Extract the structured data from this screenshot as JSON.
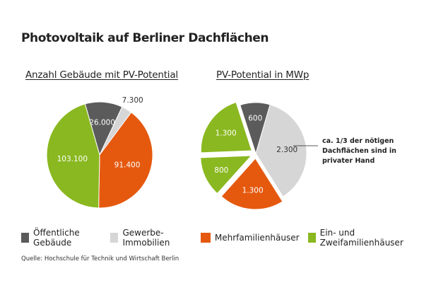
{
  "title": "Photovoltaik auf Berliner Dachflächen",
  "colors": {
    "oeffentlich": "#5b5b5b",
    "gewerbe": "#d6d6d6",
    "mehrfamilien": "#e5590f",
    "einzwei": "#8ab820"
  },
  "legend": [
    {
      "label": "Öffentliche Gebäude",
      "color": "#5b5b5b"
    },
    {
      "label": "Gewerbe-Immobilien",
      "color": "#d6d6d6"
    },
    {
      "label": "Mehrfamilienhäuser",
      "color": "#e5590f"
    },
    {
      "label": "Ein- und Zweifamilienhäuser",
      "color": "#8ab820"
    }
  ],
  "source": "Quelle: Hochschule für Technik und Wirtschaft Berlin",
  "chart_data": [
    {
      "type": "pie",
      "title": "Anzahl Gebäude mit PV-Potential",
      "slices": [
        {
          "category": "Öffentliche Gebäude",
          "value": 26000,
          "label": "26.000"
        },
        {
          "category": "Gewerbe-Immobilien",
          "value": 7300,
          "label": "7.300"
        },
        {
          "category": "Mehrfamilienhäuser",
          "value": 91400,
          "label": "91.400"
        },
        {
          "category": "Ein- und Zweifamilienhäuser",
          "value": 103100,
          "label": "103.100"
        }
      ]
    },
    {
      "type": "pie",
      "title": "PV-Potential in MWp",
      "slices": [
        {
          "category": "Öffentliche Gebäude",
          "value": 600,
          "label": "600"
        },
        {
          "category": "Gewerbe-Immobilien",
          "value": 2300,
          "label": "2.300"
        },
        {
          "category": "Mehrfamilienhäuser",
          "value": 1300,
          "label": "1.300",
          "exploded": true
        },
        {
          "category": "Ein- und Zweifamilienhäuser",
          "value": 800,
          "label": "800",
          "exploded": true
        },
        {
          "category": "Ein- und Zweifamilienhäuser",
          "value": 1300,
          "label": "1.300",
          "exploded": true
        }
      ],
      "annotation": [
        "ca. 1/3 der nötigen",
        "Dachflächen sind in",
        "privater Hand"
      ]
    }
  ]
}
